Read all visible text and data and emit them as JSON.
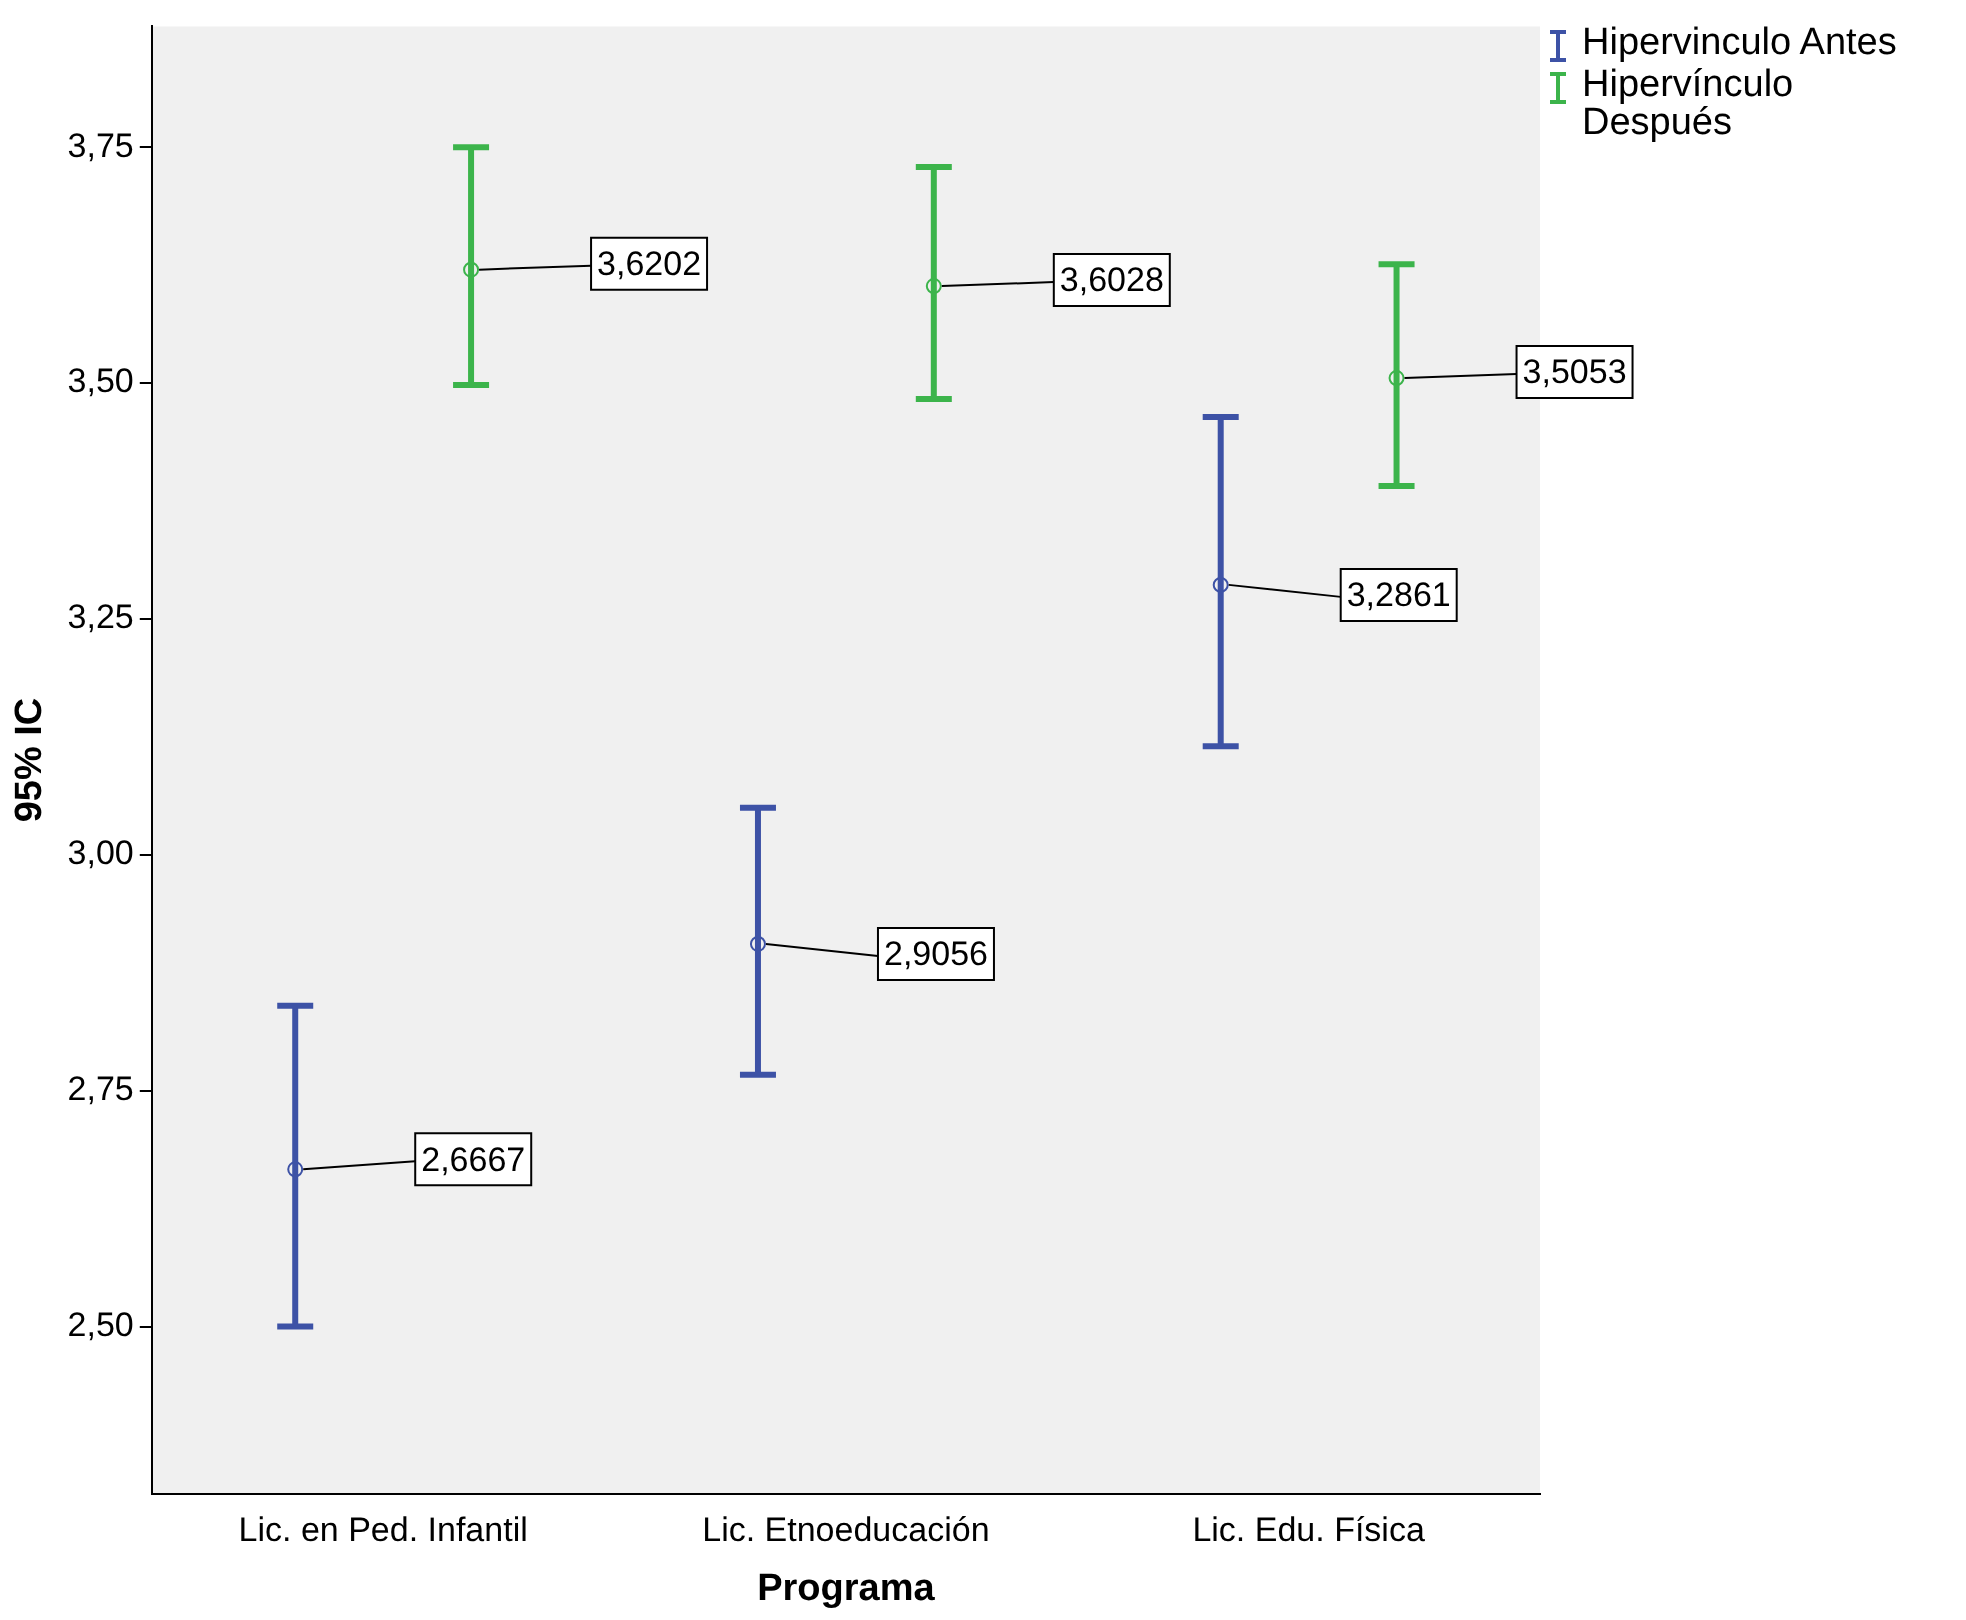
{
  "chart_data": {
    "type": "scatter",
    "xlabel": "Programa",
    "ylabel": "95% IC",
    "categories": [
      "Lic. en Ped. Infantil",
      "Lic. Etnoeducación",
      "Lic. Edu. Física"
    ],
    "series": [
      {
        "name": "Hipervinculo Antes",
        "color": "#3d52a6",
        "values": [
          2.6667,
          2.9056,
          3.2861
        ],
        "errors": [
          [
            2.5,
            2.84
          ],
          [
            2.767,
            3.05
          ],
          [
            3.115,
            3.464
          ]
        ],
        "value_labels": [
          "2,6667",
          "2,9056",
          "3,2861"
        ]
      },
      {
        "name": "Hipervínculo Después",
        "color": "#3cb44b",
        "values": [
          3.6202,
          3.6028,
          3.5053
        ],
        "errors": [
          [
            3.498,
            3.75
          ],
          [
            3.483,
            3.729
          ],
          [
            3.391,
            3.626
          ]
        ],
        "value_labels": [
          "3,6202",
          "3,6028",
          "3,5053"
        ]
      }
    ],
    "ylim": [
      2.323,
      3.878
    ],
    "yticks": [
      {
        "value": 2.5,
        "label": "2,50"
      },
      {
        "value": 2.75,
        "label": "2,75"
      },
      {
        "value": 3,
        "label": "3,00"
      },
      {
        "value": 3.25,
        "label": "3,25"
      },
      {
        "value": 3.5,
        "label": "3,50"
      },
      {
        "value": 3.75,
        "label": "3,75"
      }
    ],
    "marker": "circle",
    "legend": "top right",
    "grid": false
  }
}
